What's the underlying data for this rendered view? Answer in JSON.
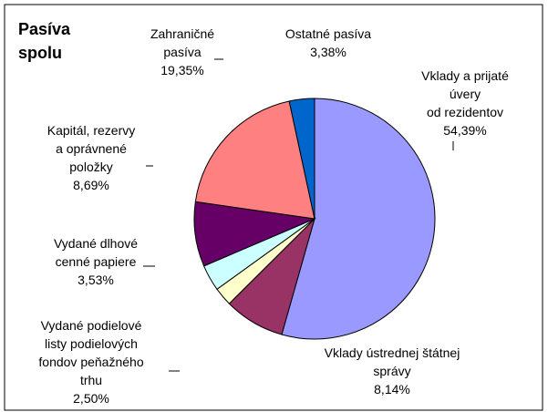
{
  "chart_data": {
    "type": "pie",
    "title": [
      "Pasíva",
      "spolu"
    ],
    "categories": [
      [
        "Vklady a prijaté",
        "úvery",
        "od rezidentov"
      ],
      [
        "Vklady ústrednej štátnej",
        "správy"
      ],
      [
        "Vydané podielové",
        "listy podielových",
        "fondov peňažného",
        "trhu"
      ],
      [
        "Vydané dlhové",
        "cenné papiere"
      ],
      [
        "Kapitál, rezervy",
        "a oprávnené",
        "položky"
      ],
      [
        "Zahraničné",
        "pasíva"
      ],
      [
        "Ostatné pasíva"
      ]
    ],
    "values": [
      54.39,
      8.14,
      2.5,
      3.53,
      8.69,
      19.35,
      3.38
    ],
    "value_labels": [
      "54,39%",
      "8,14%",
      "2,50%",
      "3,53%",
      "8,69%",
      "19,35%",
      "3,38%"
    ],
    "colors": [
      "#9999ff",
      "#993366",
      "#ffffcc",
      "#ccffff",
      "#660066",
      "#ff8080",
      "#0066cc"
    ]
  }
}
